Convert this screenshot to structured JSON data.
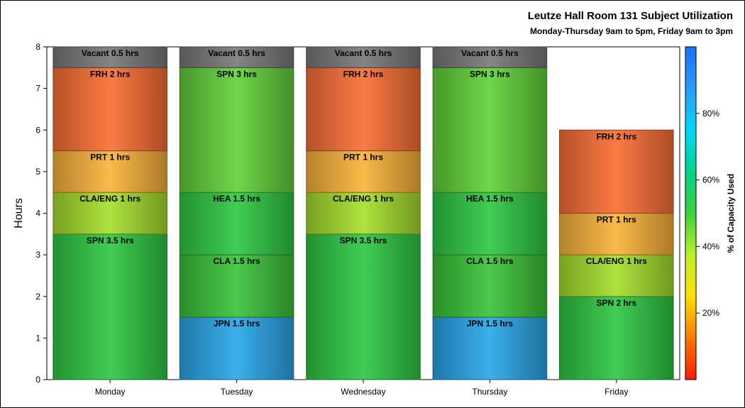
{
  "title": "Leutze Hall Room 131 Subject Utilization",
  "subtitle": "Monday-Thursday 9am to 5pm, Friday 9am to 3pm",
  "chart_data": {
    "type": "bar",
    "stacked": true,
    "ylabel": "Hours",
    "ylim": [
      0,
      8
    ],
    "yticks": [
      "0",
      "1",
      "2",
      "3",
      "4",
      "5",
      "6",
      "7",
      "8"
    ],
    "categories": [
      "Monday",
      "Tuesday",
      "Wednesday",
      "Thursday",
      "Friday"
    ],
    "bars": [
      {
        "day": "Monday",
        "segments": [
          {
            "label": "SPN 3.5 hrs",
            "hours": 3.5,
            "color": "#2fc945"
          },
          {
            "label": "CLA/ENG 1 hrs",
            "hours": 1,
            "color": "#a8e02e"
          },
          {
            "label": "PRT 1 hrs",
            "hours": 1,
            "color": "#fbb43a"
          },
          {
            "label": "FRH 2 hrs",
            "hours": 2,
            "color": "#fb7035"
          },
          {
            "label": "Vacant 0.5 hrs",
            "hours": 0.5,
            "color": "#7a7a7a"
          }
        ]
      },
      {
        "day": "Tuesday",
        "segments": [
          {
            "label": "JPN 1.5 hrs",
            "hours": 1.5,
            "color": "#2aa8ea"
          },
          {
            "label": "CLA 1.5 hrs",
            "hours": 1.5,
            "color": "#3cc43a"
          },
          {
            "label": "HEA 1.5 hrs",
            "hours": 1.5,
            "color": "#2fc945"
          },
          {
            "label": "SPN 3 hrs",
            "hours": 3,
            "color": "#62d33a"
          },
          {
            "label": "Vacant 0.5 hrs",
            "hours": 0.5,
            "color": "#7a7a7a"
          }
        ]
      },
      {
        "day": "Wednesday",
        "segments": [
          {
            "label": "SPN 3.5 hrs",
            "hours": 3.5,
            "color": "#2fc945"
          },
          {
            "label": "CLA/ENG 1 hrs",
            "hours": 1,
            "color": "#a8e02e"
          },
          {
            "label": "PRT 1 hrs",
            "hours": 1,
            "color": "#fbb43a"
          },
          {
            "label": "FRH 2 hrs",
            "hours": 2,
            "color": "#fb7035"
          },
          {
            "label": "Vacant 0.5 hrs",
            "hours": 0.5,
            "color": "#7a7a7a"
          }
        ]
      },
      {
        "day": "Thursday",
        "segments": [
          {
            "label": "JPN 1.5 hrs",
            "hours": 1.5,
            "color": "#2aa8ea"
          },
          {
            "label": "CLA 1.5 hrs",
            "hours": 1.5,
            "color": "#3cc43a"
          },
          {
            "label": "HEA 1.5 hrs",
            "hours": 1.5,
            "color": "#2fc945"
          },
          {
            "label": "SPN 3 hrs",
            "hours": 3,
            "color": "#62d33a"
          },
          {
            "label": "Vacant 0.5 hrs",
            "hours": 0.5,
            "color": "#7a7a7a"
          }
        ]
      },
      {
        "day": "Friday",
        "segments": [
          {
            "label": "SPN 2 hrs",
            "hours": 2,
            "color": "#2fc945"
          },
          {
            "label": "CLA/ENG 1 hrs",
            "hours": 1,
            "color": "#a8e02e"
          },
          {
            "label": "PRT 1 hrs",
            "hours": 1,
            "color": "#fbb43a"
          },
          {
            "label": "FRH 2 hrs",
            "hours": 2,
            "color": "#fb7035"
          }
        ]
      }
    ],
    "colorbar": {
      "label": "% of Capacity Used",
      "range": [
        0,
        100
      ],
      "ticks": [
        {
          "value": 20,
          "label": "20%"
        },
        {
          "value": 40,
          "label": "40%"
        },
        {
          "value": 60,
          "label": "60%"
        },
        {
          "value": 80,
          "label": "80%"
        }
      ],
      "colors": [
        "#ff1a00",
        "#ff7a00",
        "#ffe000",
        "#b8f02a",
        "#3cd23a",
        "#00d48a",
        "#00d8ff",
        "#2a9bff",
        "#1f6fff"
      ]
    }
  }
}
